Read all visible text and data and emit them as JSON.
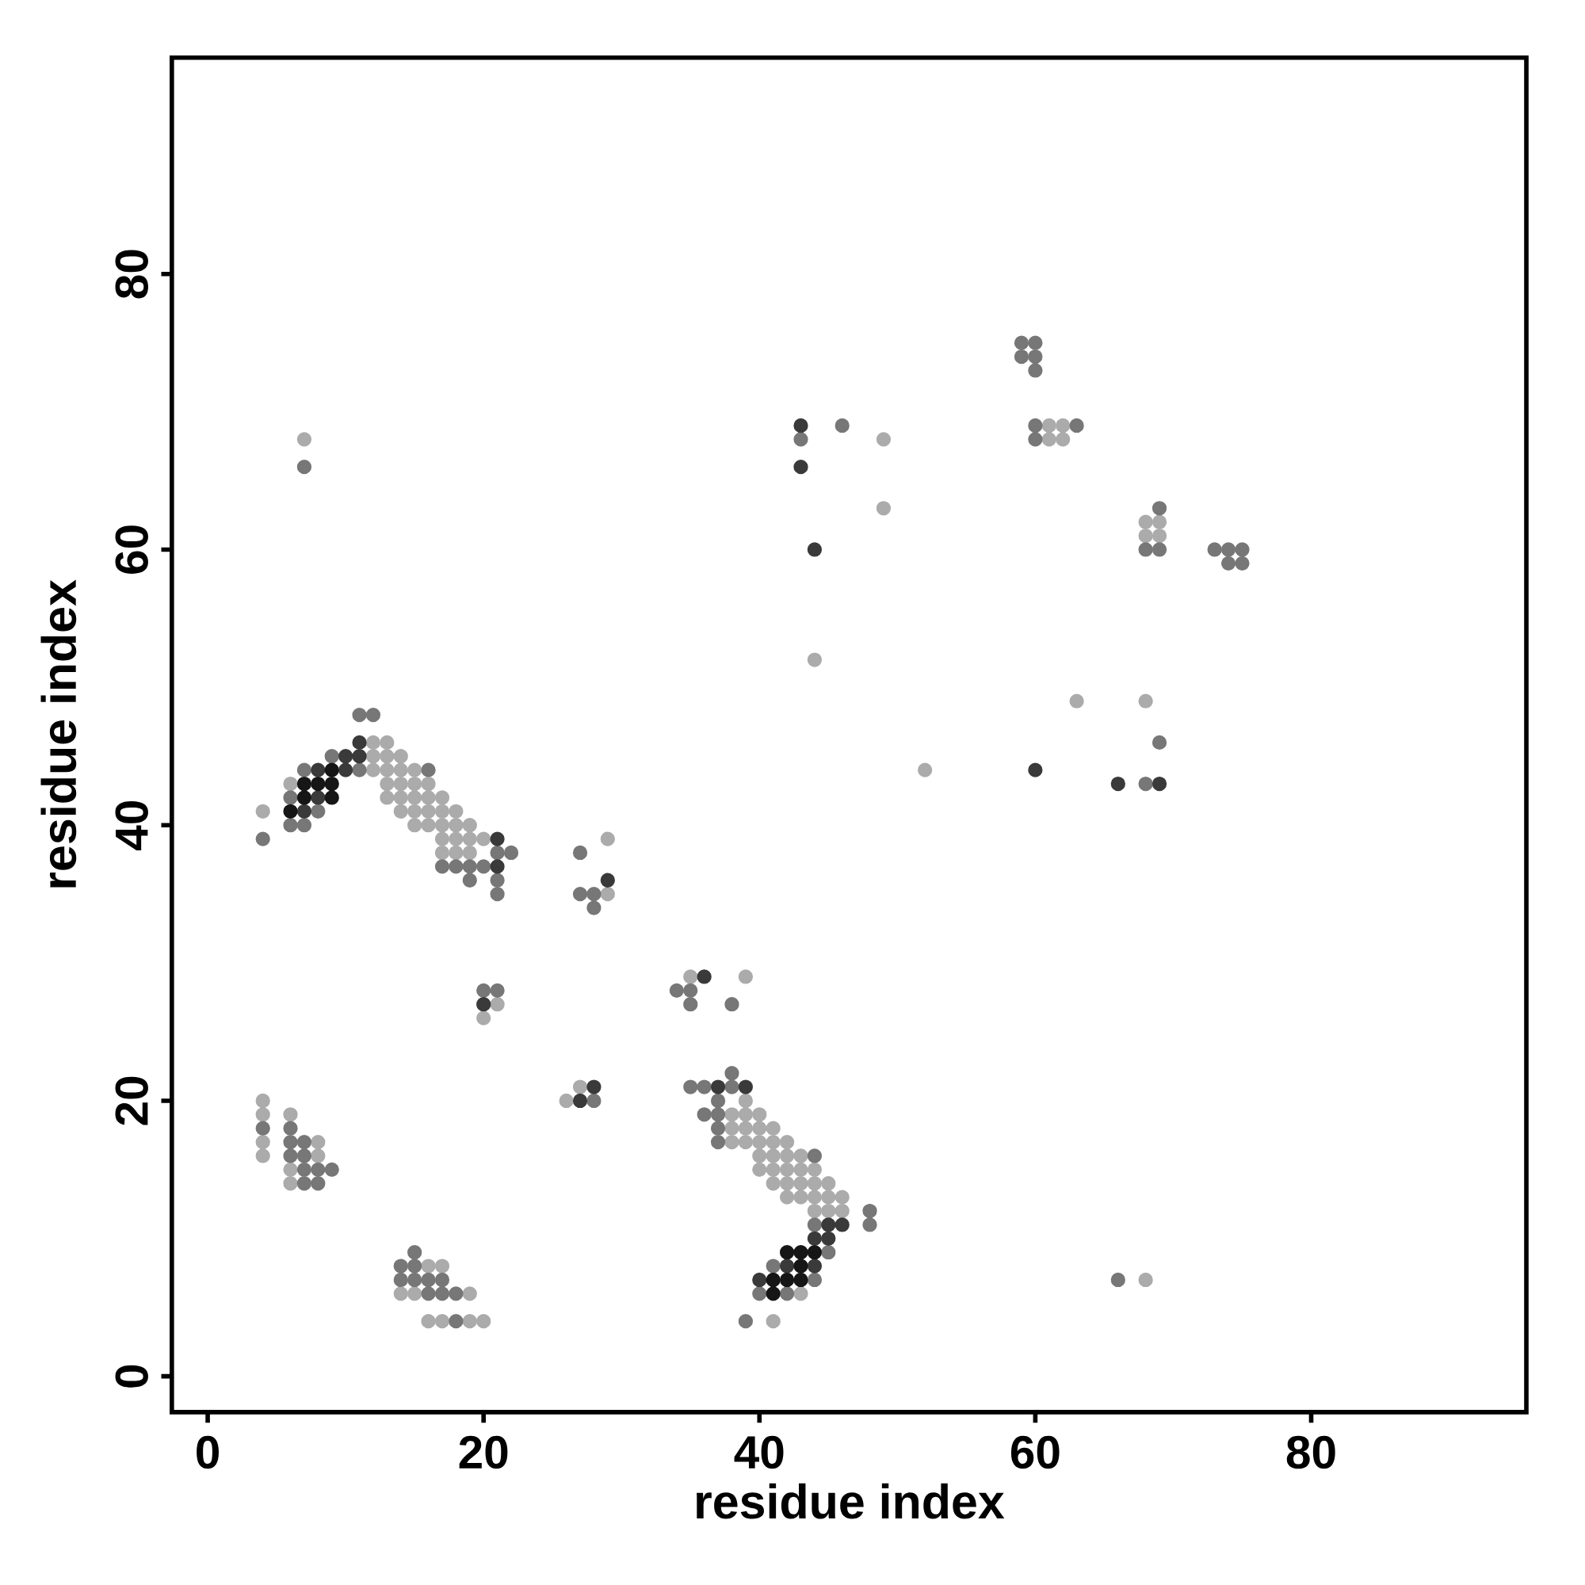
{
  "chart_data": {
    "type": "scatter",
    "xlabel": "residue index",
    "ylabel": "residue index",
    "xlim": [
      -2.6,
      95.6
    ],
    "ylim": [
      -2.6,
      95.7
    ],
    "xticks": [
      0,
      20,
      40,
      60,
      80
    ],
    "yticks": [
      0,
      20,
      40,
      60,
      80
    ],
    "marker": "circle",
    "series": [
      {
        "color": "#ababab",
        "x": [
          12,
          13,
          12,
          13,
          14,
          12,
          13,
          14,
          15,
          6,
          13,
          14,
          15,
          16,
          13,
          14,
          15,
          16,
          17,
          4,
          14,
          15,
          16,
          17,
          18,
          15,
          16,
          17,
          18,
          19,
          17,
          18,
          19,
          20,
          17,
          18,
          19,
          7,
          4,
          4,
          4,
          4,
          6,
          6,
          6,
          8,
          8,
          16,
          17,
          14,
          15,
          19,
          16,
          17,
          19,
          20,
          29,
          29,
          21,
          20,
          35,
          39,
          27,
          26,
          39,
          38,
          39,
          40,
          38,
          39,
          40,
          41,
          38,
          39,
          40,
          41,
          42,
          40,
          41,
          42,
          43,
          40,
          41,
          42,
          43,
          44,
          41,
          42,
          43,
          44,
          45,
          42,
          43,
          44,
          45,
          46,
          44,
          45,
          46,
          43,
          41,
          61,
          62,
          49,
          61,
          62,
          49,
          68,
          69,
          68,
          69,
          44,
          63,
          68,
          52,
          68
        ],
        "values": [
          46,
          46,
          45,
          45,
          45,
          44,
          44,
          44,
          44,
          43,
          43,
          43,
          43,
          43,
          42,
          42,
          42,
          42,
          42,
          41,
          41,
          41,
          41,
          41,
          41,
          40,
          40,
          40,
          40,
          40,
          39,
          39,
          39,
          39,
          38,
          38,
          38,
          68,
          20,
          19,
          17,
          16,
          19,
          15,
          14,
          17,
          16,
          8,
          8,
          6,
          6,
          6,
          4,
          4,
          4,
          4,
          39,
          35,
          27,
          26,
          29,
          29,
          21,
          20,
          20,
          19,
          19,
          19,
          18,
          18,
          18,
          18,
          17,
          17,
          17,
          17,
          17,
          16,
          16,
          16,
          16,
          15,
          15,
          15,
          15,
          15,
          14,
          14,
          14,
          14,
          14,
          13,
          13,
          13,
          13,
          13,
          12,
          12,
          12,
          6,
          4,
          69,
          69,
          68,
          68,
          68,
          63,
          62,
          62,
          61,
          61,
          52,
          49,
          49,
          44,
          7
        ]
      },
      {
        "color": "#777777",
        "x": [
          11,
          12,
          9,
          7,
          11,
          16,
          6,
          8,
          6,
          7,
          4,
          21,
          22,
          17,
          18,
          19,
          20,
          19,
          21,
          21,
          7,
          4,
          6,
          6,
          6,
          7,
          7,
          7,
          7,
          8,
          8,
          9,
          15,
          14,
          15,
          14,
          15,
          16,
          17,
          16,
          17,
          18,
          18,
          27,
          27,
          28,
          28,
          20,
          21,
          34,
          35,
          35,
          38,
          38,
          35,
          36,
          38,
          28,
          37,
          36,
          37,
          37,
          37,
          44,
          48,
          44,
          48,
          45,
          41,
          44,
          40,
          42,
          39,
          59,
          60,
          59,
          60,
          60,
          46,
          60,
          63,
          43,
          60,
          69,
          68,
          69,
          73,
          74,
          75,
          74,
          75,
          69,
          68,
          66
        ],
        "values": [
          48,
          48,
          45,
          44,
          44,
          44,
          42,
          41,
          40,
          40,
          39,
          38,
          38,
          37,
          37,
          37,
          37,
          36,
          36,
          35,
          66,
          18,
          18,
          17,
          16,
          17,
          16,
          15,
          14,
          15,
          14,
          15,
          9,
          8,
          8,
          7,
          7,
          7,
          7,
          6,
          6,
          6,
          4,
          38,
          35,
          35,
          34,
          28,
          28,
          28,
          28,
          27,
          27,
          22,
          21,
          21,
          21,
          20,
          20,
          19,
          19,
          18,
          17,
          16,
          12,
          11,
          11,
          9,
          8,
          7,
          6,
          6,
          4,
          75,
          75,
          74,
          74,
          73,
          69,
          69,
          69,
          68,
          68,
          63,
          60,
          60,
          60,
          60,
          60,
          59,
          59,
          46,
          43,
          7
        ]
      },
      {
        "color": "#3a3a3a",
        "x": [
          11,
          10,
          11,
          8,
          10,
          8,
          7,
          21,
          21,
          29,
          20,
          36,
          37,
          39,
          28,
          27,
          45,
          46,
          44,
          45,
          42,
          44,
          40,
          43,
          43,
          44,
          60,
          66,
          69
        ],
        "values": [
          46,
          45,
          45,
          44,
          44,
          42,
          41,
          39,
          37,
          36,
          27,
          29,
          21,
          21,
          21,
          20,
          11,
          11,
          10,
          10,
          8,
          8,
          7,
          69,
          66,
          60,
          44,
          43,
          43
        ]
      },
      {
        "color": "#161616",
        "x": [
          9,
          7,
          8,
          9,
          7,
          9,
          6,
          42,
          43,
          44,
          43,
          41,
          42,
          43,
          41
        ],
        "values": [
          44,
          43,
          43,
          43,
          42,
          42,
          41,
          9,
          9,
          9,
          8,
          7,
          7,
          7,
          6
        ]
      }
    ]
  }
}
